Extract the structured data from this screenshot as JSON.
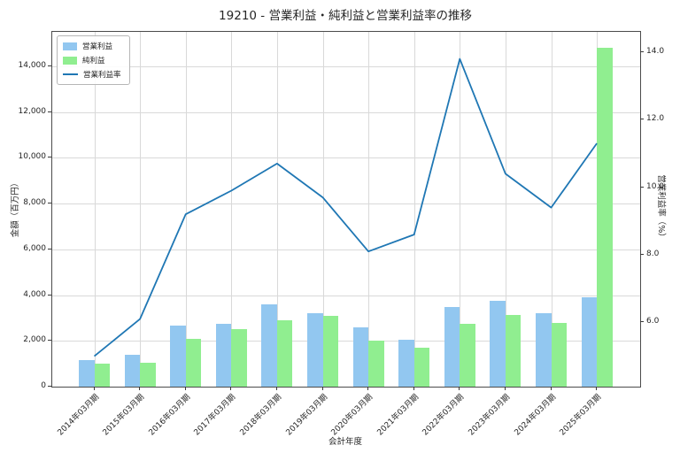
{
  "title": "19210 - 営業利益・純利益と営業利益率の推移",
  "chart_data": {
    "type": "bar+line",
    "title": "19210 - 営業利益・純利益と営業利益率の推移",
    "xlabel": "会計年度",
    "ylabel_left": "金額（百万円）",
    "ylabel_right": "営業利益率（%）",
    "categories": [
      "2014年03月期",
      "2015年03月期",
      "2016年03月期",
      "2017年03月期",
      "2018年03月期",
      "2019年03月期",
      "2020年03月期",
      "2021年03月期",
      "2022年03月期",
      "2023年03月期",
      "2024年03月期",
      "2025年03月期"
    ],
    "series": [
      {
        "name": "営業利益",
        "type": "bar",
        "axis": "left",
        "color": "#92c7f0",
        "values": [
          1150,
          1400,
          2650,
          2750,
          3600,
          3200,
          2600,
          2050,
          3500,
          3750,
          3200,
          3900
        ]
      },
      {
        "name": "純利益",
        "type": "bar",
        "axis": "left",
        "color": "#90ee90",
        "values": [
          1000,
          1030,
          2100,
          2500,
          2900,
          3100,
          2000,
          1700,
          2750,
          3150,
          2800,
          14800
        ]
      },
      {
        "name": "営業利益率",
        "type": "line",
        "axis": "right",
        "color": "#1f77b4",
        "values": [
          5.0,
          6.1,
          9.2,
          9.9,
          10.7,
          9.7,
          8.1,
          8.6,
          13.8,
          10.4,
          9.4,
          11.3
        ]
      }
    ],
    "ylim_left": [
      0,
      15500
    ],
    "yticks_left": [
      0,
      2000,
      4000,
      6000,
      8000,
      10000,
      12000,
      14000
    ],
    "ylim_right": [
      4.1,
      14.6
    ],
    "yticks_right": [
      6.0,
      8.0,
      10.0,
      12.0,
      14.0
    ],
    "grid": true,
    "legend_position": "upper-left",
    "grid_color": "#d9d9d9"
  }
}
